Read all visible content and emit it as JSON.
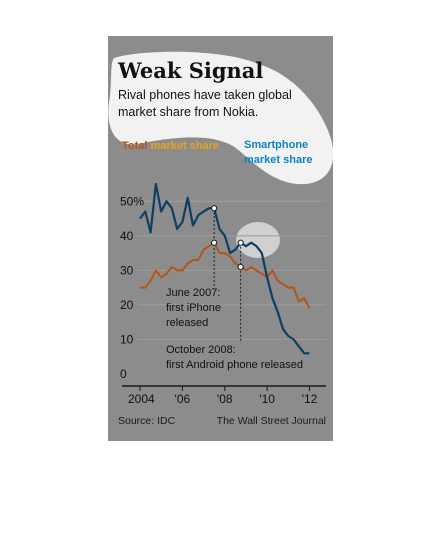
{
  "chart_data": {
    "type": "line",
    "title": "Weak Signal",
    "subtitle_lines": [
      "Rival phones have taken global",
      "market share from Nokia."
    ],
    "x_ticks": [
      "2004",
      "'06",
      "'08",
      "'10",
      "'12"
    ],
    "y_ticks": [
      "50%",
      "40",
      "30",
      "20",
      "10",
      "0"
    ],
    "ylim": [
      0,
      55
    ],
    "xlim": [
      2004,
      2012.4
    ],
    "grid": true,
    "series": [
      {
        "name": "Total market share",
        "color": "#b5541a",
        "x": [
          2004.0,
          2004.25,
          2004.5,
          2004.75,
          2005.0,
          2005.25,
          2005.5,
          2005.75,
          2006.0,
          2006.25,
          2006.5,
          2006.75,
          2007.0,
          2007.25,
          2007.5,
          2007.75,
          2008.0,
          2008.25,
          2008.5,
          2008.75,
          2009.0,
          2009.25,
          2009.5,
          2009.75,
          2010.0,
          2010.25,
          2010.5,
          2010.75,
          2011.0,
          2011.25,
          2011.5,
          2011.75,
          2012.0
        ],
        "values": [
          25,
          25,
          27,
          30,
          28,
          29,
          31,
          30,
          30,
          32,
          33,
          33,
          36,
          37,
          38,
          35,
          35,
          34,
          32,
          31,
          30,
          31,
          30,
          29,
          28,
          30,
          27,
          26,
          25,
          25,
          21,
          22,
          19
        ]
      },
      {
        "name": "Smartphone market share",
        "legend_lines": [
          "Smartphone",
          "market share"
        ],
        "color": "#0d3f63",
        "x": [
          2004.0,
          2004.25,
          2004.5,
          2004.75,
          2005.0,
          2005.25,
          2005.5,
          2005.75,
          2006.0,
          2006.25,
          2006.5,
          2006.75,
          2007.0,
          2007.25,
          2007.5,
          2007.75,
          2008.0,
          2008.25,
          2008.5,
          2008.75,
          2009.0,
          2009.25,
          2009.5,
          2009.75,
          2010.0,
          2010.25,
          2010.5,
          2010.75,
          2011.0,
          2011.25,
          2011.5,
          2011.75,
          2012.0
        ],
        "values": [
          45,
          47,
          41,
          55,
          47,
          50,
          48,
          42,
          44,
          51,
          43,
          46,
          47,
          48,
          48,
          42,
          40,
          35,
          36,
          38,
          37,
          38,
          37,
          35,
          28,
          22,
          18,
          13,
          11,
          10,
          8,
          6,
          6
        ]
      }
    ],
    "annotations": [
      {
        "x": 2007.5,
        "lines": [
          "June 2007:",
          "first iPhone",
          "released"
        ]
      },
      {
        "x": 2008.75,
        "lines": [
          "October 2008:",
          "first Android phone released"
        ]
      }
    ],
    "source": "Source: IDC",
    "credit": "The Wall Street Journal"
  },
  "colors": {
    "total_legend": "#b5541a",
    "total_legend_accent": "#e8a21e",
    "smartphone_legend": "#0d82c4",
    "panel": "#8c8c8c",
    "halo": "#f2f2f2"
  }
}
